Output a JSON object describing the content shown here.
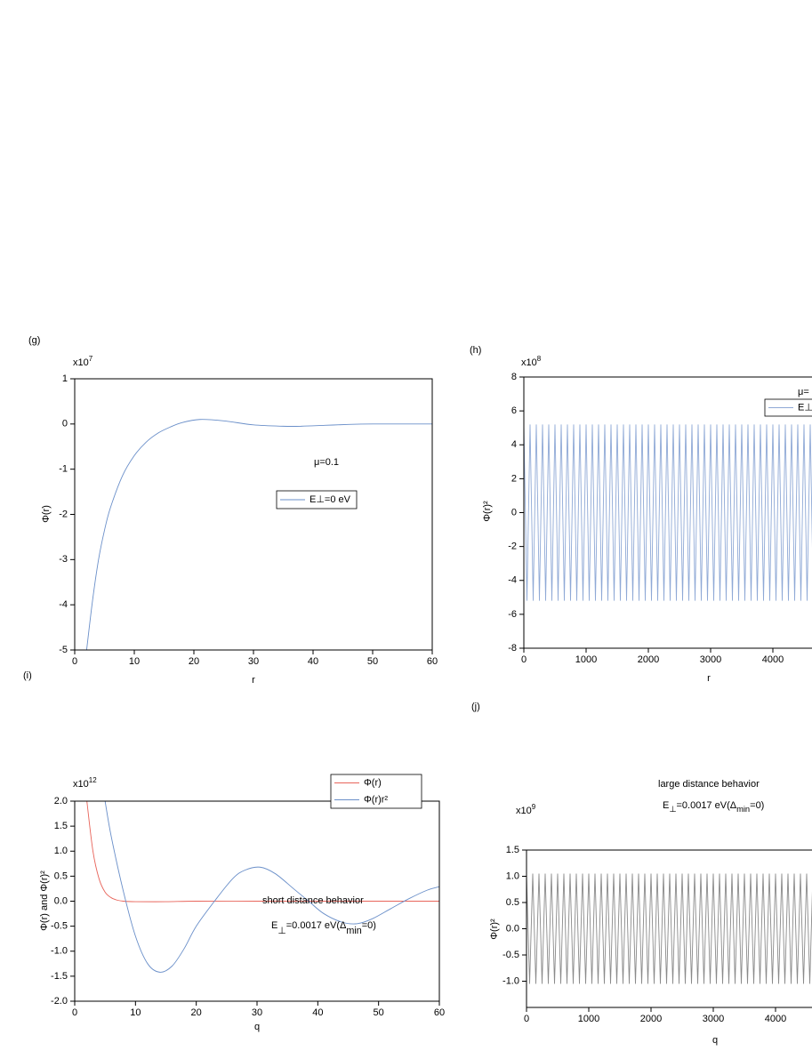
{
  "chart_data": [
    {
      "type": "line",
      "panel_label": "(g)",
      "smooth": true,
      "y_multiplier": {
        "base": "x10",
        "exponent": "7"
      },
      "xlabel": "r",
      "ylabel": "Φ(r)",
      "xlim": [
        0,
        60
      ],
      "xticks": [
        0,
        10,
        20,
        30,
        40,
        50,
        60
      ],
      "ylim": [
        -5,
        1
      ],
      "yticks": [
        -5,
        -4,
        -3,
        -2,
        -1,
        0,
        1
      ],
      "series": [
        {
          "name": "E⊥=0 eV",
          "color": "#6a8fc9",
          "x": [
            2,
            3,
            4,
            5,
            6,
            8,
            10,
            12,
            14,
            16,
            18,
            21,
            25,
            30,
            35,
            38,
            42,
            46,
            50,
            55,
            60
          ],
          "values": [
            -5,
            -3.9,
            -3.0,
            -2.35,
            -1.85,
            -1.15,
            -0.7,
            -0.4,
            -0.2,
            -0.07,
            0.03,
            0.1,
            0.07,
            -0.02,
            -0.05,
            -0.05,
            -0.03,
            -0.01,
            0,
            0,
            0
          ]
        }
      ],
      "annotations": [
        {
          "segments": [
            {
              "text": "μ=0.1"
            }
          ]
        }
      ]
    },
    {
      "type": "line",
      "panel_label": "(h)",
      "smooth": false,
      "y_multiplier": {
        "base": "x10",
        "exponent": "8"
      },
      "xlabel": "r",
      "ylabel": "Φ(r)²",
      "xlim": [
        0,
        5000
      ],
      "xticks": [
        0,
        1000,
        2000,
        3000,
        4000
      ],
      "ylim": [
        -8,
        8
      ],
      "yticks": [
        -8,
        -6,
        -4,
        -2,
        0,
        2,
        4,
        6,
        8
      ],
      "series": [
        {
          "name": "E⊥",
          "color": "#8fa9d6",
          "x": [
            0,
            50,
            100,
            150,
            200,
            250,
            300,
            350,
            400,
            450,
            500,
            550,
            600,
            650,
            700,
            750,
            800,
            850,
            900,
            950,
            1000,
            1050,
            1100,
            1150,
            1200,
            1250,
            1300,
            1350,
            1400,
            1450,
            1500,
            1550,
            1600,
            1650,
            1700,
            1750,
            1800,
            1850,
            1900,
            1950,
            2000,
            2050,
            2100,
            2150,
            2200,
            2250,
            2300,
            2350,
            2400,
            2450,
            2500,
            2550,
            2600,
            2650,
            2700,
            2750,
            2800,
            2850,
            2900,
            2950,
            3000,
            3050,
            3100,
            3150,
            3200,
            3250,
            3300,
            3350,
            3400,
            3450,
            3500,
            3550,
            3600,
            3650,
            3700,
            3750,
            3800,
            3850,
            3900,
            3950,
            4000,
            4050,
            4100,
            4150,
            4200,
            4250,
            4300,
            4350,
            4400,
            4450,
            4500,
            4550,
            4600,
            4650,
            4700
          ],
          "values": [
            5.2,
            -5.2,
            5.2,
            -5.2,
            5.2,
            -5.2,
            5.2,
            -5.2,
            5.2,
            -5.2,
            5.2,
            -5.2,
            5.2,
            -5.2,
            5.2,
            -5.2,
            5.2,
            -5.2,
            5.2,
            -5.2,
            5.2,
            -5.2,
            5.2,
            -5.2,
            5.2,
            -5.2,
            5.2,
            -5.2,
            5.2,
            -5.2,
            5.2,
            -5.2,
            5.2,
            -5.2,
            5.2,
            -5.2,
            5.2,
            -5.2,
            5.2,
            -5.2,
            5.2,
            -5.2,
            5.2,
            -5.2,
            5.2,
            -5.2,
            5.2,
            -5.2,
            5.2,
            -5.2,
            5.2,
            -5.2,
            5.2,
            -5.2,
            5.2,
            -5.2,
            5.2,
            -5.2,
            5.2,
            -5.2,
            5.2,
            -5.2,
            5.2,
            -5.2,
            5.2,
            -5.2,
            5.2,
            -5.2,
            5.2,
            -5.2,
            5.2,
            -5.2,
            5.2,
            -5.2,
            5.2,
            -5.2,
            5.2,
            -5.2,
            5.2,
            -5.2,
            5.2,
            -5.2,
            5.2,
            -5.2,
            5.2,
            -5.2,
            5.2,
            -5.2,
            5.2,
            -5.2,
            5.2,
            -5.2,
            5.2,
            -5.2,
            5.2
          ]
        }
      ],
      "annotations": [
        {
          "segments": [
            {
              "text": "μ="
            }
          ]
        }
      ]
    },
    {
      "type": "line",
      "panel_label": "(i)",
      "smooth": true,
      "y_multiplier": {
        "base": "x10",
        "exponent": "12"
      },
      "xlabel": "q",
      "ylabel": "Φ(r) and Φ(r)²",
      "xlim": [
        0,
        60
      ],
      "xticks": [
        0,
        10,
        20,
        30,
        40,
        50,
        60
      ],
      "ylim": [
        -2,
        2
      ],
      "yticks": [
        {
          "value": -2,
          "label": "-2.0"
        },
        -1.5,
        {
          "value": -1,
          "label": "-1.0"
        },
        -0.5,
        {
          "value": 0,
          "label": "0.0"
        },
        0.5,
        {
          "value": 1,
          "label": "1.0"
        },
        1.5,
        {
          "value": 2,
          "label": "2.0"
        }
      ],
      "series": [
        {
          "name": "Φ(r)",
          "color": "#e8645a",
          "x": [
            2,
            3,
            4,
            5,
            6,
            7,
            8,
            10,
            15,
            20,
            30,
            40,
            50,
            60
          ],
          "values": [
            2.0,
            1.0,
            0.45,
            0.18,
            0.07,
            0.02,
            0.0,
            -0.01,
            -0.01,
            0,
            0,
            0,
            0,
            0
          ]
        },
        {
          "name": "Φ(r)r²",
          "color": "#6a8fc9",
          "x": [
            5,
            6,
            8,
            10,
            12,
            14,
            16,
            18,
            20,
            23,
            26,
            28,
            30.5,
            33,
            36,
            38.5,
            41,
            44,
            46.5,
            49,
            52,
            55,
            58,
            60
          ],
          "values": [
            2.0,
            1.3,
            0.2,
            -0.7,
            -1.25,
            -1.42,
            -1.3,
            -0.95,
            -0.5,
            0,
            0.45,
            0.62,
            0.68,
            0.55,
            0.25,
            0,
            -0.25,
            -0.42,
            -0.45,
            -0.35,
            -0.15,
            0.05,
            0.22,
            0.29
          ]
        }
      ],
      "annotations": [
        {
          "segments": [
            {
              "text": "short distance behavior"
            }
          ]
        },
        {
          "segments": [
            {
              "text": "E"
            },
            {
              "text": "⊥",
              "sub": true
            },
            {
              "text": "=0.0017 eV(Δ"
            },
            {
              "text": "min",
              "sub": true
            },
            {
              "text": "=0)"
            }
          ]
        }
      ]
    },
    {
      "type": "line",
      "panel_label": "(j)",
      "smooth": false,
      "y_multiplier": {
        "base": "x10",
        "exponent": "9"
      },
      "xlabel": "q",
      "ylabel": "Φ(r)²",
      "xlim": [
        0,
        5000
      ],
      "xticks": [
        0,
        1000,
        2000,
        3000,
        4000
      ],
      "ylim": [
        -1.5,
        1.5
      ],
      "yticks": [
        {
          "value": -1,
          "label": "-1.0"
        },
        -0.5,
        {
          "value": 0,
          "label": "0.0"
        },
        0.5,
        {
          "value": 1,
          "label": "1.0"
        },
        1.5
      ],
      "series": [
        {
          "color": "#8a8a8a",
          "x": [
            0,
            50,
            100,
            150,
            200,
            250,
            300,
            350,
            400,
            450,
            500,
            550,
            600,
            650,
            700,
            750,
            800,
            850,
            900,
            950,
            1000,
            1050,
            1100,
            1150,
            1200,
            1250,
            1300,
            1350,
            1400,
            1450,
            1500,
            1550,
            1600,
            1650,
            1700,
            1750,
            1800,
            1850,
            1900,
            1950,
            2000,
            2050,
            2100,
            2150,
            2200,
            2250,
            2300,
            2350,
            2400,
            2450,
            2500,
            2550,
            2600,
            2650,
            2700,
            2750,
            2800,
            2850,
            2900,
            2950,
            3000,
            3050,
            3100,
            3150,
            3200,
            3250,
            3300,
            3350,
            3400,
            3450,
            3500,
            3550,
            3600,
            3650,
            3700,
            3750,
            3800,
            3850,
            3900,
            3950,
            4000,
            4050,
            4100,
            4150,
            4200,
            4250,
            4300,
            4350,
            4400,
            4450,
            4500,
            4550,
            4600
          ],
          "values": [
            1.05,
            -1.05,
            1.05,
            -1.05,
            1.05,
            -1.05,
            1.05,
            -1.05,
            1.05,
            -1.05,
            1.05,
            -1.05,
            1.05,
            -1.05,
            1.05,
            -1.05,
            1.05,
            -1.05,
            1.05,
            -1.05,
            1.05,
            -1.05,
            1.05,
            -1.05,
            1.05,
            -1.05,
            1.05,
            -1.05,
            1.05,
            -1.05,
            1.05,
            -1.05,
            1.05,
            -1.05,
            1.05,
            -1.05,
            1.05,
            -1.05,
            1.05,
            -1.05,
            1.05,
            -1.05,
            1.05,
            -1.05,
            1.05,
            -1.05,
            1.05,
            -1.05,
            1.05,
            -1.05,
            1.05,
            -1.05,
            1.05,
            -1.05,
            1.05,
            -1.05,
            1.05,
            -1.05,
            1.05,
            -1.05,
            1.05,
            -1.05,
            1.05,
            -1.05,
            1.05,
            -1.05,
            1.05,
            -1.05,
            1.05,
            -1.05,
            1.05,
            -1.05,
            1.05,
            -1.05,
            1.05,
            -1.05,
            1.05,
            -1.05,
            1.05,
            -1.05,
            1.05,
            -1.05,
            1.05,
            -1.05,
            1.05,
            -1.05,
            1.05,
            -1.05,
            1.05,
            -1.05,
            1.05,
            -1.05,
            1.05
          ]
        }
      ],
      "annotations": [
        {
          "segments": [
            {
              "text": "large distance behavior"
            }
          ]
        },
        {
          "segments": [
            {
              "text": "E"
            },
            {
              "text": "⊥",
              "sub": true
            },
            {
              "text": "=0.0017 eV(Δ"
            },
            {
              "text": "min",
              "sub": true
            },
            {
              "text": "=0)"
            }
          ]
        }
      ]
    }
  ]
}
